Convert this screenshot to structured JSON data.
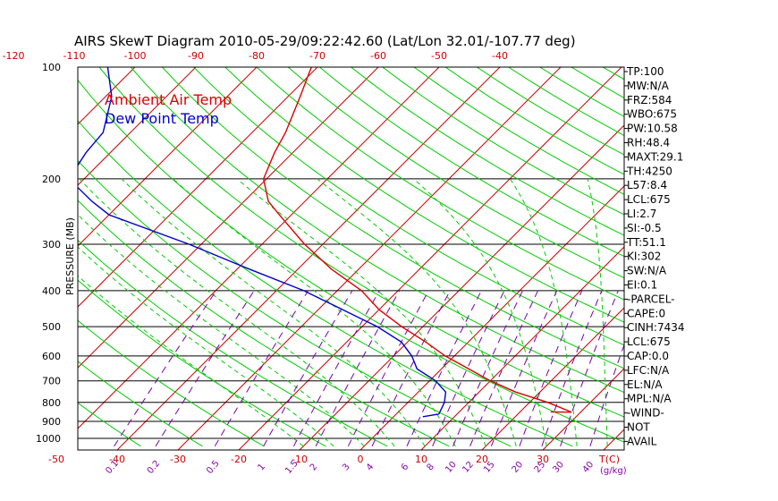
{
  "colors": {
    "temp": "#dd0000",
    "dew": "#0000cc",
    "dry_adiabat": "#00cc00",
    "moist_adiabat": "#00cc00",
    "isotherm": "#cc0000",
    "mixing_ratio": "#7700aa",
    "isobar": "#000000"
  },
  "chart_data": {
    "type": "line",
    "title": "AIRS SkewT Diagram 2010-05-29/09:22:42.60 (Lat/Lon 32.01/-107.77 deg)",
    "ylabel": "PRESSURE (MB)",
    "xlabel_bottom_unit": "T(C)",
    "mixing_ratio_unit": "(g/kg)",
    "pressure_range": [
      1050,
      100
    ],
    "pressure_scale": "log",
    "pressure_ticks": [
      100,
      200,
      300,
      400,
      500,
      600,
      700,
      800,
      900,
      1000
    ],
    "pressure_tick_labels": [
      "100",
      "200",
      "300",
      "400",
      "500",
      "600",
      "700",
      "800",
      "900",
      "1000"
    ],
    "bottom_temp_ticks": [
      -50,
      -40,
      -30,
      -20,
      -10,
      0,
      10,
      20,
      30
    ],
    "bottom_temp_labels": [
      "-50",
      "-40",
      "-30",
      "-20",
      "-10",
      "0",
      "10",
      "20",
      "30"
    ],
    "top_temp_ticks": [
      -120,
      -110,
      -100,
      -90,
      -80,
      -70,
      -60,
      -50,
      -40
    ],
    "top_temp_labels": [
      "-120",
      "-110",
      "-100",
      "-90",
      "-80",
      "-70",
      "-60",
      "-50",
      "-40"
    ],
    "mixing_ratio_values": [
      0.1,
      0.2,
      0.5,
      1,
      1.5,
      2,
      3,
      4,
      6,
      8,
      10,
      12,
      15,
      20,
      25,
      30,
      40
    ],
    "mixing_ratio_labels": [
      "0.1",
      "0.2",
      "0.5",
      "1",
      "1.5",
      "2",
      "3",
      "4",
      "6",
      "8",
      "10",
      "12",
      "15",
      "20",
      "25",
      "30",
      "40"
    ],
    "legend": [
      {
        "name": "Ambient Air Temp",
        "color": "#dd0000"
      },
      {
        "name": "Dew Point Temp",
        "color": "#0000cc"
      }
    ],
    "series": [
      {
        "name": "Ambient Air Temp",
        "pressure": [
          850,
          800,
          750,
          700,
          650,
          600,
          550,
          500,
          450,
          400,
          350,
          300,
          250,
          230,
          200,
          170,
          150,
          120,
          100
        ],
        "temp": [
          28.5,
          23.0,
          16.0,
          10.0,
          4.5,
          -1.5,
          -7.0,
          -13.5,
          -20.0,
          -26.0,
          -34.5,
          -43.0,
          -52.0,
          -56.0,
          -60.5,
          -63.0,
          -64.5,
          -68.0,
          -71.0
        ]
      },
      {
        "name": "Dew Point Temp",
        "pressure": [
          860,
          800,
          750,
          700,
          650,
          600,
          550,
          500,
          450,
          400,
          350,
          300,
          250,
          230,
          200,
          170,
          150,
          120,
          100
        ],
        "temp": [
          7.0,
          6.0,
          4.5,
          1.0,
          -4.0,
          -7.0,
          -11.0,
          -17.5,
          -26.0,
          -35.5,
          -48.0,
          -62.0,
          -80.0,
          -85.0,
          -92.5,
          -94.0,
          -94.5,
          -99.0,
          -104.5
        ]
      }
    ],
    "parcel_segment": {
      "pressure": [
        850,
        830
      ],
      "temp": [
        28.5,
        26.5
      ]
    },
    "wind_barbs": [
      {
        "pressure": 860,
        "temp_anchor": 7.0,
        "note": "surface barb"
      }
    ]
  },
  "indices": [
    "TP:100",
    "MW:N/A",
    "FRZ:584",
    "WBO:675",
    "PW:10.58",
    "RH:48.4",
    "MAXT:29.1",
    "TH:4250",
    "L57:8.4",
    "LCL:675",
    "LI:2.7",
    "SI:-0.5",
    "TT:51.1",
    "KI:302",
    "SW:N/A",
    "EI:0.1",
    "-PARCEL-",
    "CAPE:0",
    "CINH:7434",
    "LCL:675",
    "CAP:0.0",
    "LFC:N/A",
    "EL:N/A",
    "MPL:N/A",
    "-WIND-",
    "NOT",
    "AVAIL"
  ]
}
